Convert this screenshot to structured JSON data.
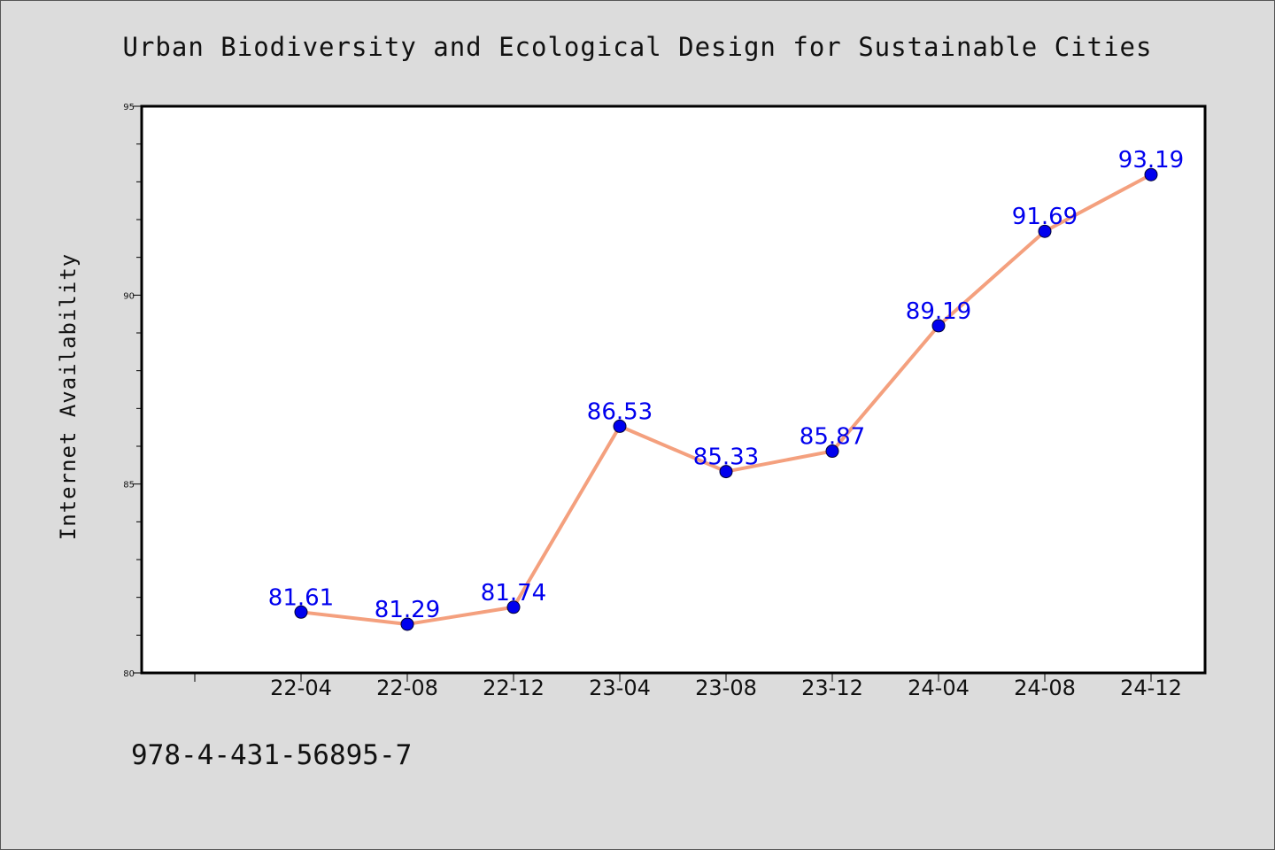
{
  "chart_data": {
    "type": "line",
    "title": "Urban Biodiversity and Ecological Design for Sustainable Cities",
    "xlabel": "",
    "ylabel": "Internet Availability",
    "categories": [
      "22-04",
      "22-08",
      "22-12",
      "23-04",
      "23-08",
      "23-12",
      "24-04",
      "24-08",
      "24-12"
    ],
    "series": [
      {
        "values": [
          81.61,
          81.29,
          81.74,
          86.53,
          85.33,
          85.87,
          89.19,
          91.69,
          93.19
        ],
        "data_labels": [
          "81.61",
          "81.29",
          "81.74",
          "86.53",
          "85.33",
          "85.87",
          "89.19",
          "91.69",
          "93.19"
        ],
        "line_color": "#f4a07e",
        "marker_color": "#0000ee",
        "label_color": "#0000ee"
      }
    ],
    "ylim": [
      80,
      95
    ],
    "yticks": [
      "80",
      "85",
      "90",
      "95"
    ],
    "grid": false,
    "legend": "none"
  },
  "footer": {
    "isbn": "978-4-431-56895-7"
  },
  "colors": {
    "background": "#dcdcdc",
    "plot_background": "#ffffff"
  }
}
